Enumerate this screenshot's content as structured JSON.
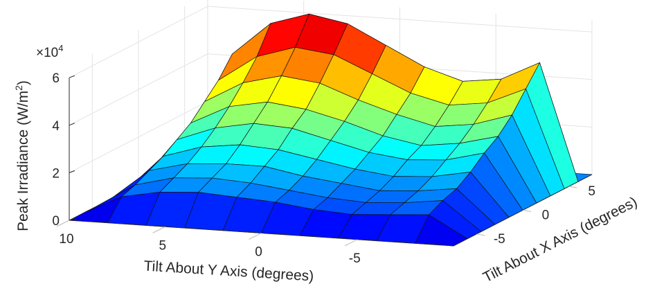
{
  "chart_data": {
    "type": "surface",
    "title": "",
    "xlabel": "Tilt About Y Axis (degrees)",
    "ylabel": "Tilt About X Axis (degrees)",
    "zlabel": "Peak Irradiance (W/m",
    "zlabel_sup": "2",
    "zlabel_end": ")",
    "z_multiplier": "×10",
    "z_multiplier_exp": "4",
    "xlim": [
      -10,
      10
    ],
    "ylim": [
      -7.5,
      7.5
    ],
    "zlim": [
      0,
      6.5
    ],
    "x_ticks": [
      "10",
      "5",
      "0",
      "-5"
    ],
    "x_tick_values": [
      10,
      5,
      0,
      -5
    ],
    "y_ticks": [
      "-5",
      "0",
      "5"
    ],
    "y_tick_values": [
      -5,
      0,
      5
    ],
    "z_ticks": [
      "0",
      "2",
      "4",
      "6"
    ],
    "z_tick_values": [
      0,
      2,
      4,
      6
    ],
    "grid": true,
    "colormap": "jet",
    "x": [
      10,
      8,
      6,
      4,
      2,
      0,
      -2,
      -4,
      -6,
      -8,
      -10
    ],
    "y": [
      -7.5,
      -6,
      -4.5,
      -3,
      -1.5,
      0,
      1.5,
      3,
      4.5,
      6,
      7.5
    ],
    "z": [
      [
        0,
        0,
        0,
        0,
        0,
        0,
        0,
        0,
        0,
        0,
        0
      ],
      [
        0,
        0.8,
        1.1,
        1.2,
        1.1,
        1.0,
        0.8,
        0.7,
        0.8,
        0.9,
        0
      ],
      [
        0,
        1.0,
        1.4,
        1.5,
        1.4,
        1.2,
        1.0,
        0.9,
        1.0,
        1.2,
        0
      ],
      [
        0,
        1.3,
        1.7,
        1.8,
        1.8,
        1.5,
        1.3,
        1.1,
        1.2,
        1.4,
        0
      ],
      [
        0,
        1.6,
        2.1,
        2.3,
        2.2,
        1.9,
        1.6,
        1.4,
        1.5,
        1.8,
        0
      ],
      [
        0,
        2.0,
        2.6,
        2.9,
        2.8,
        2.4,
        2.0,
        1.8,
        1.9,
        2.3,
        0
      ],
      [
        0,
        2.4,
        3.2,
        3.5,
        3.3,
        2.9,
        2.4,
        2.1,
        2.3,
        2.7,
        0
      ],
      [
        0,
        3.0,
        3.9,
        4.3,
        4.1,
        3.5,
        3.0,
        2.6,
        2.8,
        3.3,
        0
      ],
      [
        0,
        3.6,
        4.7,
        5.2,
        5.0,
        4.3,
        3.6,
        3.2,
        3.4,
        4.1,
        0
      ],
      [
        0,
        4.4,
        5.8,
        6.3,
        6.0,
        5.2,
        4.4,
        3.9,
        4.1,
        4.9,
        0
      ],
      [
        0,
        0,
        0,
        0,
        0,
        0,
        0,
        0,
        0,
        0,
        0
      ]
    ]
  }
}
